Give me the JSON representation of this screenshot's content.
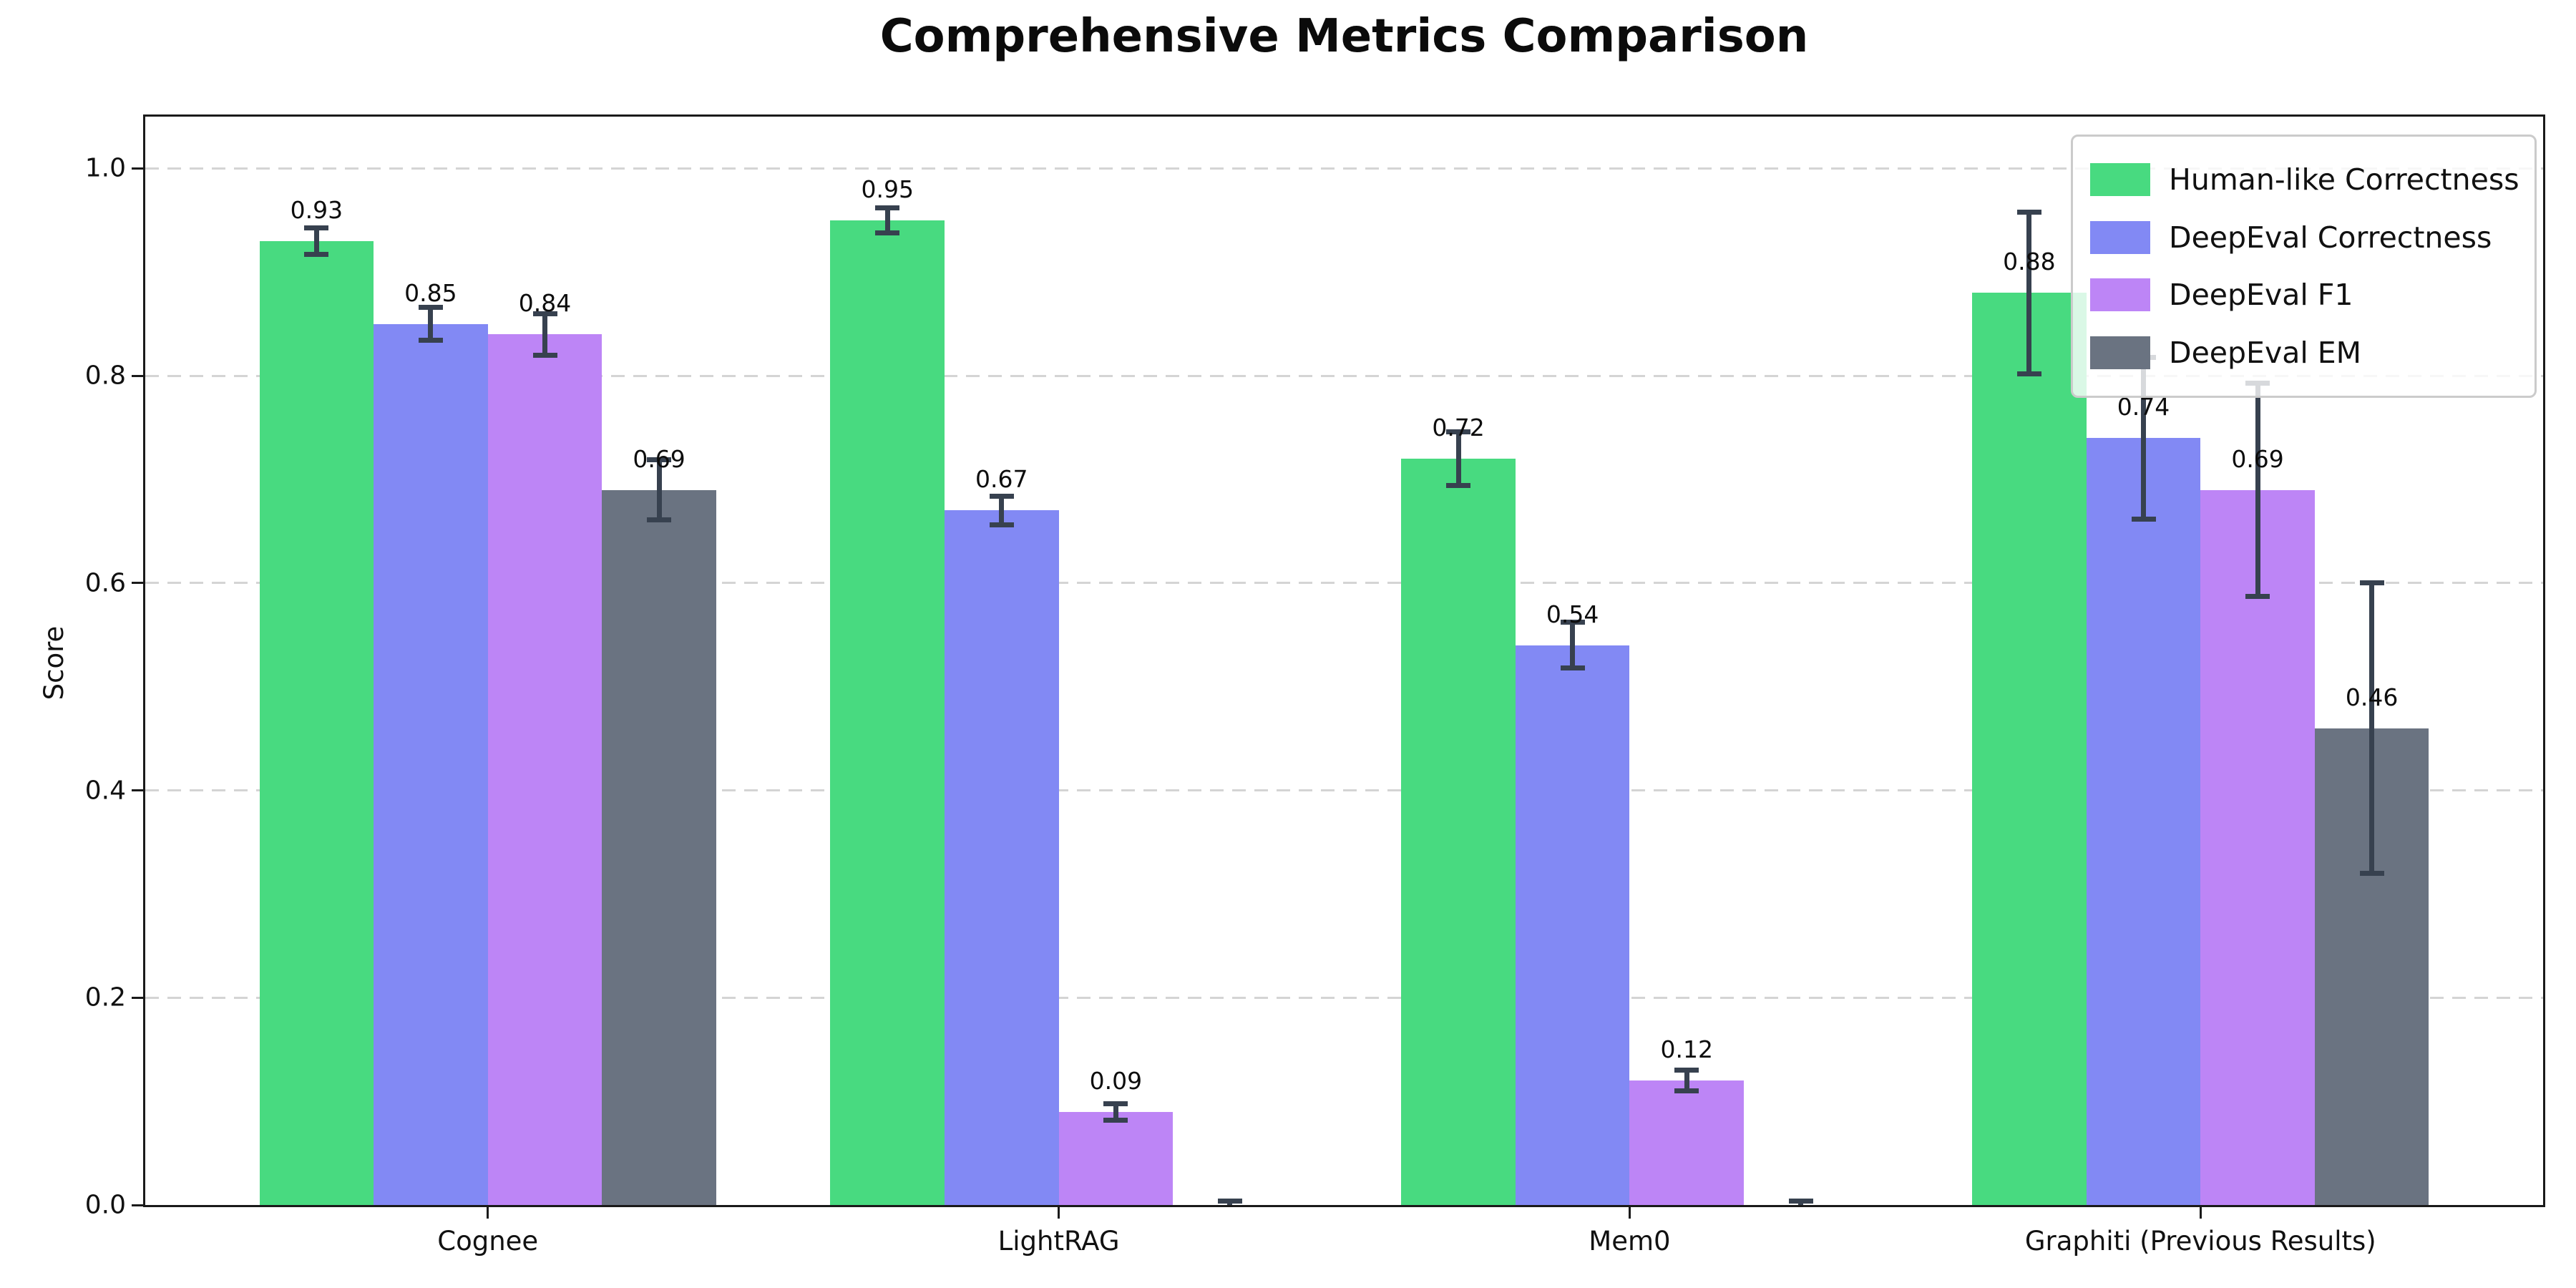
{
  "figure": {
    "title": "Comprehensive Metrics Comparison",
    "ylabel": "Score"
  },
  "chart_data": {
    "type": "bar",
    "title": "Comprehensive Metrics Comparison",
    "xlabel": "",
    "ylabel": "Score",
    "categories": [
      "Cognee",
      "LightRAG",
      "Mem0",
      "Graphiti (Previous Results)"
    ],
    "series": [
      {
        "name": "Human-like Correctness",
        "color": "#48da80",
        "values": [
          0.93,
          0.95,
          0.72,
          0.88
        ],
        "errors": [
          0.013,
          0.012,
          0.026,
          0.078
        ],
        "labels": [
          "0.93",
          "0.95",
          "0.72",
          "0.88"
        ]
      },
      {
        "name": "DeepEval Correctness",
        "color": "#8289f4",
        "values": [
          0.85,
          0.67,
          0.54,
          0.74
        ],
        "errors": [
          0.016,
          0.014,
          0.022,
          0.078
        ],
        "labels": [
          "0.85",
          "0.67",
          "0.54",
          "0.74"
        ]
      },
      {
        "name": "DeepEval F1",
        "color": "#bd85f6",
        "values": [
          0.84,
          0.09,
          0.12,
          0.69
        ],
        "errors": [
          0.02,
          0.008,
          0.01,
          0.103
        ],
        "labels": [
          "0.84",
          "0.09",
          "0.12",
          "0.69"
        ]
      },
      {
        "name": "DeepEval EM",
        "color": "#6a7381",
        "values": [
          0.69,
          0.0,
          0.0,
          0.46
        ],
        "errors": [
          0.029,
          0.004,
          0.004,
          0.14
        ],
        "labels": [
          "0.69",
          null,
          null,
          "0.46"
        ]
      }
    ],
    "yticks": [
      "0.0",
      "0.2",
      "0.4",
      "0.6",
      "0.8",
      "1.0"
    ],
    "ytick_values": [
      0,
      0.2,
      0.4,
      0.6,
      0.8,
      1.0
    ],
    "ylim": [
      0,
      1.05
    ],
    "xlim": [
      -0.6,
      3.6
    ],
    "bar_width": 0.2,
    "grid": "dashed-horizontal",
    "legend_position": "upper right",
    "error_bar_color": "#37414f"
  }
}
